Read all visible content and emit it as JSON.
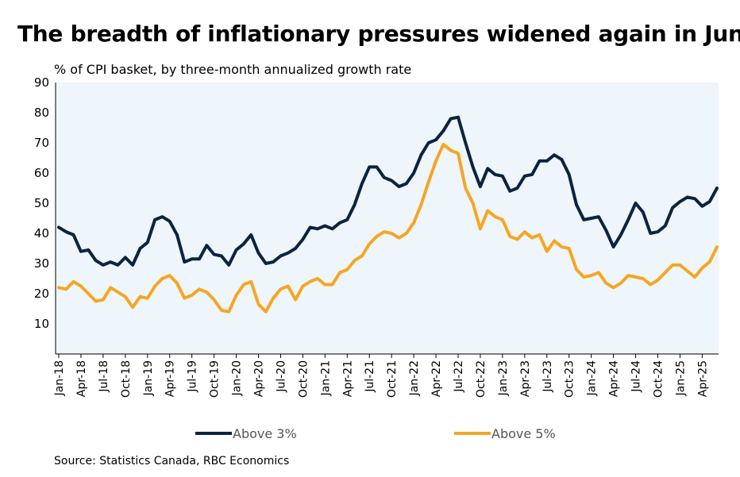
{
  "header": {
    "title": "The breadth of inflationary pressures widened again in June",
    "source": "Source: Statistics Canada, RBC Economics"
  },
  "chart_data": {
    "type": "line",
    "title": "The breadth of inflationary pressures widened again in June",
    "subtitle": "% of CPI basket, by three-month annualized growth rate",
    "xlabel": "",
    "ylabel": "% of CPI basket, by three-month annualized growth rate",
    "ylim": [
      0,
      90
    ],
    "yticks": [
      10,
      20,
      30,
      40,
      50,
      60,
      70,
      80,
      90
    ],
    "x_start": "Jan-18",
    "x_tick_labels": [
      "Jan-18",
      "Apr-18",
      "Jul-18",
      "Oct-18",
      "Jan-19",
      "Apr-19",
      "Jul-19",
      "Oct-19",
      "Jan-20",
      "Apr-20",
      "Jul-20",
      "Oct-20",
      "Jan-21",
      "Apr-21",
      "Jul-21",
      "Oct-21",
      "Jan-22",
      "Apr-22",
      "Jul-22",
      "Oct-22",
      "Jan-23",
      "Apr-23",
      "Jul-23",
      "Oct-23",
      "Jan-24",
      "Apr-24",
      "Jul-24",
      "Oct-24",
      "Jan-25",
      "Apr-25"
    ],
    "grid": false,
    "legend_position": "bottom",
    "colors": {
      "plot_bg": "#eef5fb",
      "above3": "#0c2340",
      "above5": "#f5a623"
    },
    "series": [
      {
        "name": "Above 3%",
        "color": "#0c2340",
        "values": [
          42.0,
          40.5,
          39.5,
          34.0,
          34.5,
          31.0,
          29.5,
          30.5,
          29.5,
          32.0,
          29.5,
          35.0,
          37.0,
          44.5,
          45.5,
          44.0,
          39.5,
          30.5,
          31.5,
          31.5,
          36.0,
          33.0,
          32.5,
          29.5,
          34.5,
          36.5,
          39.5,
          33.5,
          30.0,
          30.5,
          32.5,
          33.5,
          35.0,
          38.0,
          42.0,
          41.5,
          42.5,
          41.5,
          43.5,
          44.5,
          49.5,
          56.5,
          62.0,
          62.0,
          58.5,
          57.5,
          55.5,
          56.5,
          60.0,
          66.0,
          70.0,
          71.0,
          74.0,
          78.0,
          78.5,
          70.0,
          62.0,
          55.5,
          61.5,
          59.5,
          59.0,
          54.0,
          55.0,
          59.0,
          59.5,
          64.0,
          64.0,
          66.0,
          64.5,
          59.5,
          49.5,
          44.5,
          45.0,
          45.5,
          41.0,
          35.5,
          39.5,
          44.5,
          50.0,
          47.0,
          40.0,
          40.5,
          42.5,
          48.5,
          50.5,
          52.0,
          51.5,
          49.0,
          50.5,
          55.0
        ]
      },
      {
        "name": "Above 5%",
        "color": "#f5a623",
        "values": [
          22.0,
          21.5,
          24.0,
          22.5,
          20.0,
          17.5,
          18.0,
          22.0,
          20.5,
          19.0,
          15.5,
          19.0,
          18.5,
          22.5,
          25.0,
          26.0,
          23.5,
          18.5,
          19.5,
          21.5,
          20.5,
          18.0,
          14.5,
          14.0,
          19.5,
          23.0,
          24.0,
          16.5,
          14.0,
          18.5,
          21.5,
          22.5,
          18.0,
          22.5,
          24.0,
          25.0,
          23.0,
          23.0,
          27.0,
          28.0,
          31.0,
          32.5,
          36.5,
          39.0,
          40.5,
          40.0,
          38.5,
          40.0,
          43.5,
          49.5,
          57.0,
          64.0,
          69.5,
          67.5,
          66.5,
          55.0,
          50.0,
          41.5,
          47.5,
          45.5,
          44.5,
          39.0,
          38.0,
          40.5,
          38.5,
          39.5,
          34.0,
          37.5,
          35.5,
          35.0,
          28.0,
          25.5,
          26.0,
          27.0,
          23.5,
          22.0,
          23.5,
          26.0,
          25.5,
          25.0,
          23.0,
          24.5,
          27.0,
          29.5,
          29.5,
          27.5,
          25.5,
          28.5,
          30.5,
          35.5
        ]
      }
    ]
  }
}
